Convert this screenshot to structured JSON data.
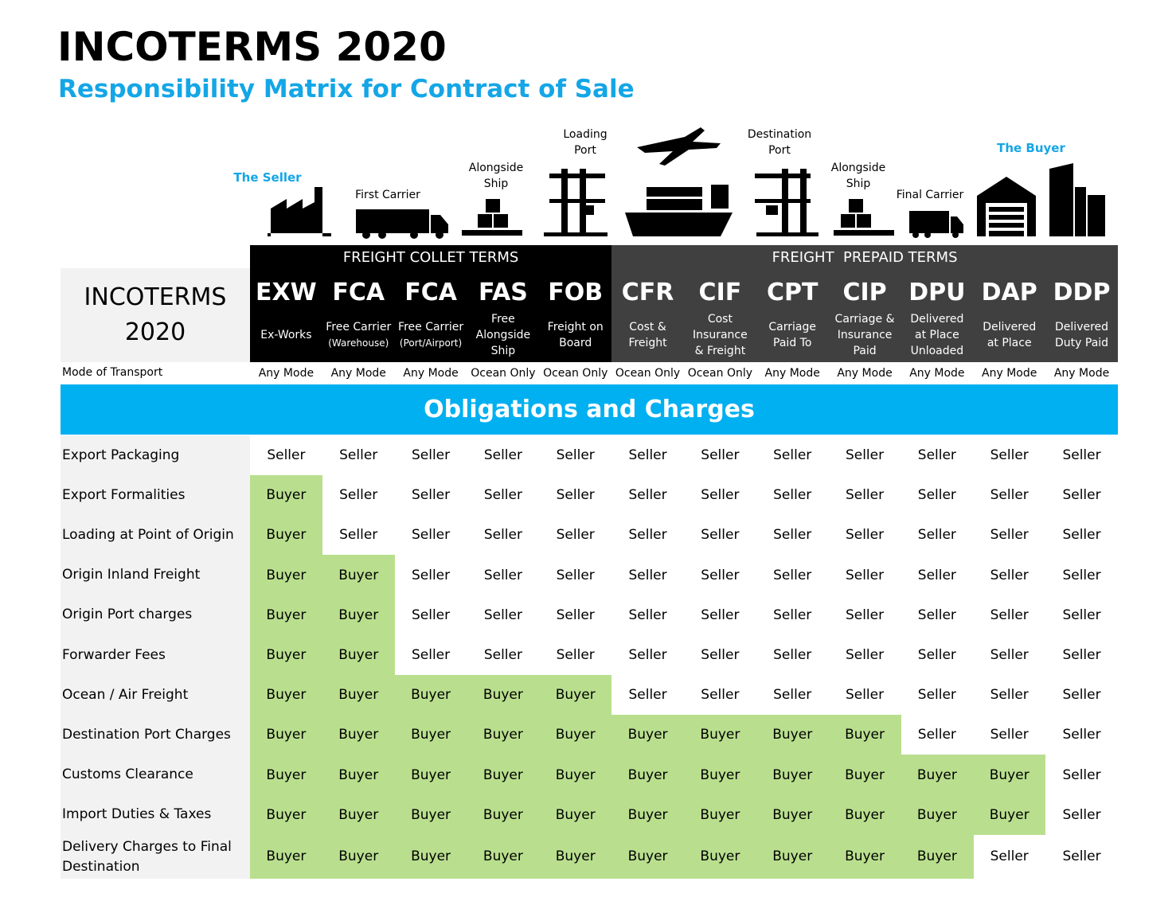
{
  "header": {
    "title": "INCOTERMS 2020",
    "subtitle": "Responsibility Matrix for Contract of Sale"
  },
  "icon_labels": {
    "seller": "The Seller",
    "first_carrier": "First Carrier",
    "alongside_ship_1": [
      "Alongside",
      "Ship"
    ],
    "loading_port": [
      "Loading",
      "Port"
    ],
    "destination_port": [
      "Destination",
      "Port"
    ],
    "alongside_ship_2": [
      "Alongside",
      "Ship"
    ],
    "final_carrier": "Final Carrier",
    "buyer": "The Buyer"
  },
  "table": {
    "corner_label": "INCOTERMS 2020",
    "groups": [
      "FREIGHT COLLET TERMS",
      "FREIGHT  PREPAID TERMS"
    ],
    "mode_label": "Mode of Transport",
    "terms": [
      {
        "code": "EXW",
        "description": [
          "Ex-Works"
        ],
        "mode": "Any Mode"
      },
      {
        "code": "FCA",
        "description": [
          "Free Carrier",
          "(Warehouse)"
        ],
        "mode": "Any Mode"
      },
      {
        "code": "FCA",
        "description": [
          "Free Carrier",
          "(Port/Airport)"
        ],
        "mode": "Any Mode"
      },
      {
        "code": "FAS",
        "description": [
          "Free",
          "Alongside",
          "Ship"
        ],
        "mode": "Ocean Only"
      },
      {
        "code": "FOB",
        "description": [
          "Freight on",
          "Board"
        ],
        "mode": "Ocean Only"
      },
      {
        "code": "CFR",
        "description": [
          "Cost &",
          "Freight"
        ],
        "mode": "Ocean Only"
      },
      {
        "code": "CIF",
        "description": [
          "Cost",
          "Insurance",
          "& Freight"
        ],
        "mode": "Ocean Only"
      },
      {
        "code": "CPT",
        "description": [
          "Carriage",
          "Paid To"
        ],
        "mode": "Any Mode"
      },
      {
        "code": "CIP",
        "description": [
          "Carriage &",
          "Insurance",
          "Paid"
        ],
        "mode": "Any Mode"
      },
      {
        "code": "DPU",
        "description": [
          "Delivered",
          "at Place",
          "Unloaded"
        ],
        "mode": "Any Mode"
      },
      {
        "code": "DAP",
        "description": [
          "Delivered",
          "at Place"
        ],
        "mode": "Any Mode"
      },
      {
        "code": "DDP",
        "description": [
          "Delivered",
          "Duty Paid"
        ],
        "mode": "Any Mode"
      }
    ],
    "section_title": "Obligations and Charges",
    "rows": [
      {
        "label": "Export Packaging",
        "values": [
          "Seller",
          "Seller",
          "Seller",
          "Seller",
          "Seller",
          "Seller",
          "Seller",
          "Seller",
          "Seller",
          "Seller",
          "Seller",
          "Seller"
        ]
      },
      {
        "label": "Export Formalities",
        "values": [
          "Buyer",
          "Seller",
          "Seller",
          "Seller",
          "Seller",
          "Seller",
          "Seller",
          "Seller",
          "Seller",
          "Seller",
          "Seller",
          "Seller"
        ]
      },
      {
        "label": "Loading at Point of Origin",
        "values": [
          "Buyer",
          "Seller",
          "Seller",
          "Seller",
          "Seller",
          "Seller",
          "Seller",
          "Seller",
          "Seller",
          "Seller",
          "Seller",
          "Seller"
        ]
      },
      {
        "label": "Origin Inland Freight",
        "values": [
          "Buyer",
          "Buyer",
          "Seller",
          "Seller",
          "Seller",
          "Seller",
          "Seller",
          "Seller",
          "Seller",
          "Seller",
          "Seller",
          "Seller"
        ]
      },
      {
        "label": "Origin Port charges",
        "values": [
          "Buyer",
          "Buyer",
          "Seller",
          "Seller",
          "Seller",
          "Seller",
          "Seller",
          "Seller",
          "Seller",
          "Seller",
          "Seller",
          "Seller"
        ]
      },
      {
        "label": "Forwarder Fees",
        "values": [
          "Buyer",
          "Buyer",
          "Seller",
          "Seller",
          "Seller",
          "Seller",
          "Seller",
          "Seller",
          "Seller",
          "Seller",
          "Seller",
          "Seller"
        ]
      },
      {
        "label": "Ocean / Air Freight",
        "values": [
          "Buyer",
          "Buyer",
          "Buyer",
          "Buyer",
          "Buyer",
          "Seller",
          "Seller",
          "Seller",
          "Seller",
          "Seller",
          "Seller",
          "Seller"
        ]
      },
      {
        "label": "Destination Port Charges",
        "values": [
          "Buyer",
          "Buyer",
          "Buyer",
          "Buyer",
          "Buyer",
          "Buyer",
          "Buyer",
          "Buyer",
          "Buyer",
          "Seller",
          "Seller",
          "Seller"
        ]
      },
      {
        "label": "Customs Clearance",
        "values": [
          "Buyer",
          "Buyer",
          "Buyer",
          "Buyer",
          "Buyer",
          "Buyer",
          "Buyer",
          "Buyer",
          "Buyer",
          "Buyer",
          "Buyer",
          "Seller"
        ]
      },
      {
        "label": "Import Duties & Taxes",
        "values": [
          "Buyer",
          "Buyer",
          "Buyer",
          "Buyer",
          "Buyer",
          "Buyer",
          "Buyer",
          "Buyer",
          "Buyer",
          "Buyer",
          "Buyer",
          "Seller"
        ]
      },
      {
        "label": "Delivery Charges to Final Destination",
        "values": [
          "Buyer",
          "Buyer",
          "Buyer",
          "Buyer",
          "Buyer",
          "Buyer",
          "Buyer",
          "Buyer",
          "Buyer",
          "Buyer",
          "Seller",
          "Seller"
        ]
      }
    ]
  }
}
